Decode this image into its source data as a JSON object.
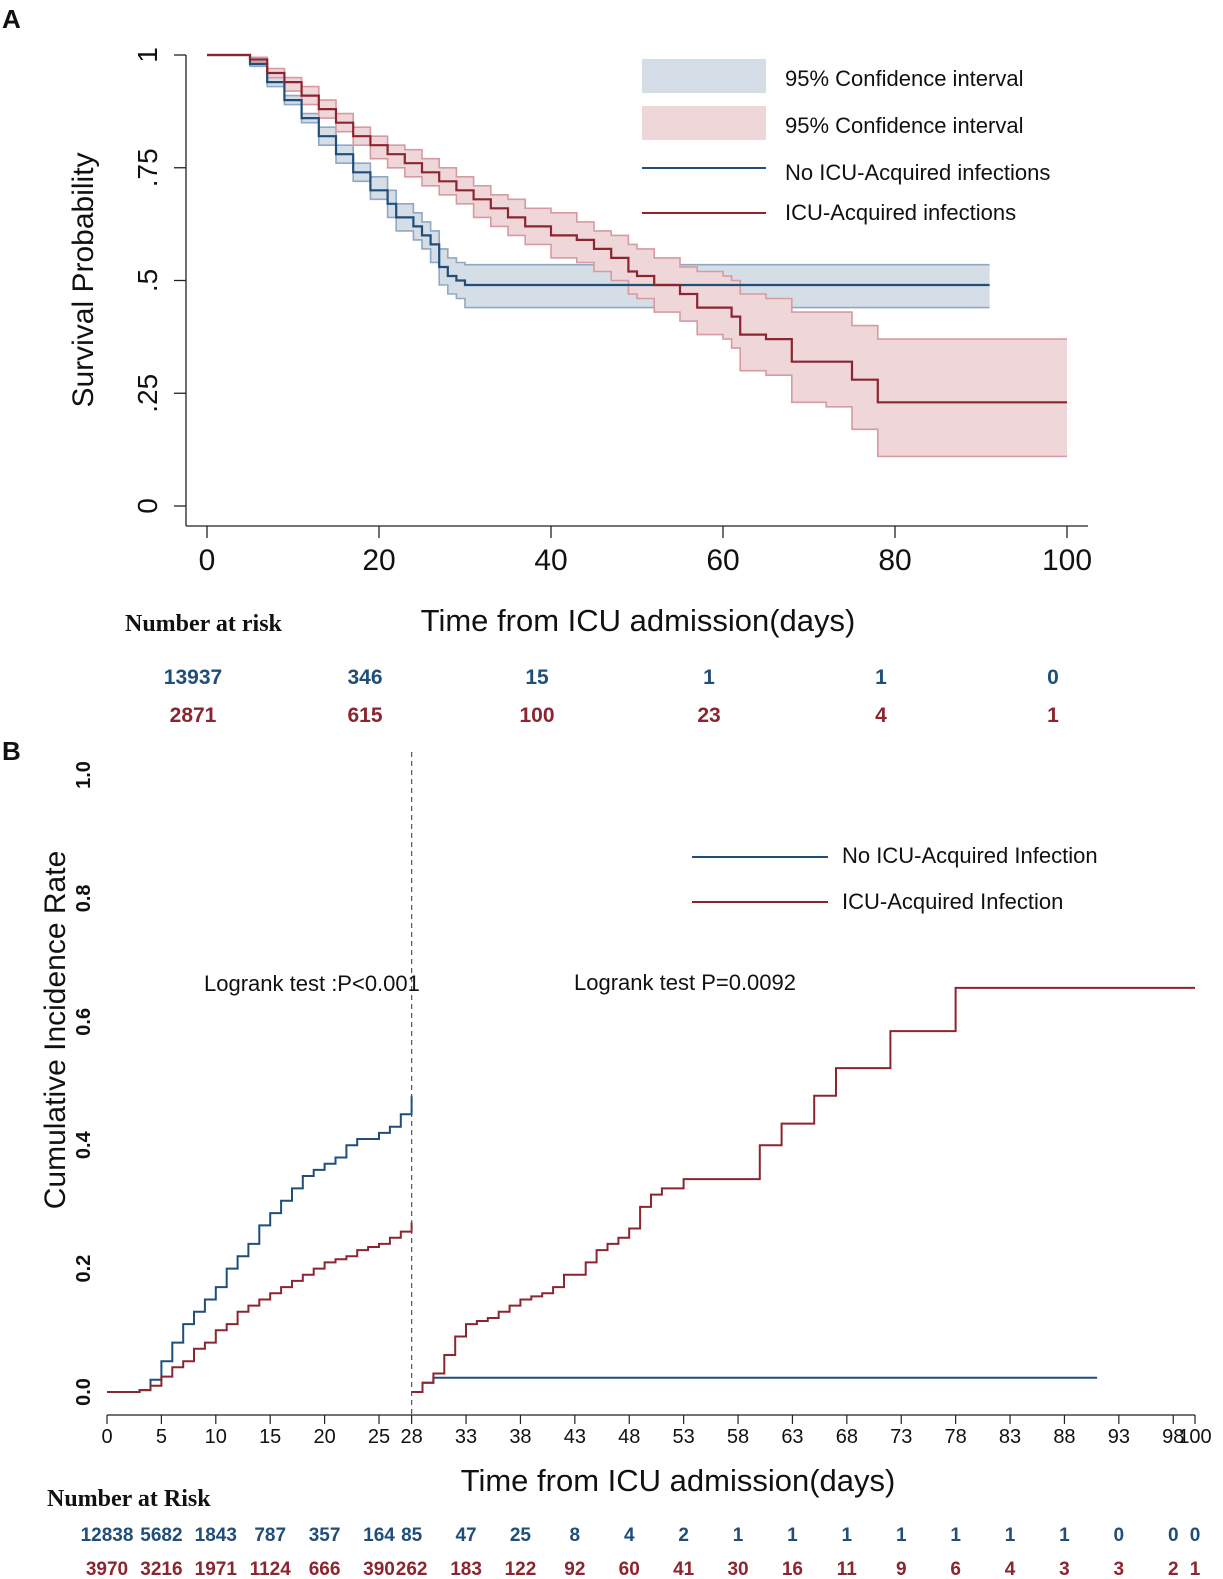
{
  "colors": {
    "blue": "#1f4e79",
    "red": "#8b2530",
    "blue_fill": "#d5dde7",
    "red_fill": "#efd7d9",
    "blue_edge": "#8fa8c4",
    "red_edge": "#d79aa1"
  },
  "chart_data": [
    {
      "panel": "A",
      "type": "line",
      "xlabel": "Time from ICU admission(days)",
      "ylabel": "Survival Probability",
      "xlim": [
        0,
        100
      ],
      "ylim": [
        0,
        1
      ],
      "xticks": [
        "0",
        "20",
        "40",
        "60",
        "80",
        "100"
      ],
      "xtick_values": [
        0,
        20,
        40,
        60,
        80,
        100
      ],
      "yticks": [
        "0",
        ".25",
        ".5",
        ".75",
        "1"
      ],
      "ytick_values": [
        0,
        0.25,
        0.5,
        0.75,
        1
      ],
      "legend": {
        "position": "top-right",
        "entries": [
          "95% Confidence interval",
          "95% Confidence interval",
          "No ICU-Acquired infections",
          "ICU-Acquired infections"
        ]
      },
      "series": [
        {
          "name": "No ICU-Acquired infections",
          "color": "blue",
          "x": [
            0,
            3,
            5,
            7,
            9,
            11,
            13,
            15,
            17,
            19,
            21,
            22,
            24,
            25,
            26,
            27,
            28,
            29,
            30,
            91
          ],
          "y": [
            1,
            1,
            0.98,
            0.94,
            0.9,
            0.86,
            0.82,
            0.78,
            0.74,
            0.7,
            0.67,
            0.64,
            0.62,
            0.6,
            0.58,
            0.53,
            0.51,
            0.5,
            0.49,
            0.49
          ],
          "lower": [
            1,
            1,
            0.975,
            0.93,
            0.89,
            0.85,
            0.8,
            0.76,
            0.72,
            0.68,
            0.64,
            0.61,
            0.59,
            0.57,
            0.54,
            0.49,
            0.47,
            0.46,
            0.44,
            0.44
          ],
          "upper": [
            1,
            1,
            0.985,
            0.95,
            0.91,
            0.87,
            0.84,
            0.8,
            0.76,
            0.73,
            0.7,
            0.67,
            0.65,
            0.63,
            0.61,
            0.57,
            0.55,
            0.54,
            0.535,
            0.535
          ]
        },
        {
          "name": "ICU-Acquired infections",
          "color": "red",
          "x": [
            0,
            3,
            5,
            7,
            9,
            11,
            13,
            15,
            17,
            19,
            21,
            23,
            25,
            27,
            29,
            31,
            33,
            35,
            37,
            40,
            43,
            45,
            47,
            49,
            50,
            52,
            55,
            57,
            60,
            61,
            62,
            65,
            68,
            72,
            75,
            78,
            100
          ],
          "y": [
            1,
            1,
            0.99,
            0.96,
            0.94,
            0.91,
            0.88,
            0.85,
            0.82,
            0.8,
            0.78,
            0.76,
            0.74,
            0.72,
            0.7,
            0.68,
            0.66,
            0.64,
            0.62,
            0.6,
            0.59,
            0.57,
            0.55,
            0.52,
            0.51,
            0.49,
            0.47,
            0.44,
            0.44,
            0.42,
            0.38,
            0.37,
            0.32,
            0.32,
            0.28,
            0.23,
            0.23
          ],
          "lower": [
            1,
            1,
            0.985,
            0.95,
            0.92,
            0.89,
            0.86,
            0.83,
            0.8,
            0.77,
            0.75,
            0.73,
            0.71,
            0.69,
            0.67,
            0.64,
            0.62,
            0.6,
            0.58,
            0.55,
            0.54,
            0.52,
            0.5,
            0.47,
            0.46,
            0.43,
            0.41,
            0.38,
            0.37,
            0.35,
            0.3,
            0.29,
            0.23,
            0.22,
            0.17,
            0.11,
            0.11
          ],
          "upper": [
            1,
            1,
            0.995,
            0.97,
            0.95,
            0.93,
            0.9,
            0.87,
            0.84,
            0.82,
            0.8,
            0.79,
            0.77,
            0.75,
            0.73,
            0.71,
            0.69,
            0.68,
            0.66,
            0.65,
            0.63,
            0.61,
            0.6,
            0.58,
            0.57,
            0.55,
            0.53,
            0.52,
            0.51,
            0.5,
            0.47,
            0.46,
            0.43,
            0.43,
            0.4,
            0.37,
            0.37
          ]
        }
      ],
      "risk_table": {
        "title": "Number at risk",
        "at": [
          0,
          20,
          40,
          60,
          80,
          100
        ],
        "rows": [
          {
            "color": "blue",
            "values": [
              "13937",
              "346",
              "15",
              "1",
              "1",
              "0"
            ]
          },
          {
            "color": "red",
            "values": [
              "2871",
              "615",
              "100",
              "23",
              "4",
              "1"
            ]
          }
        ]
      }
    },
    {
      "panel": "B",
      "type": "line",
      "xlabel": "Time from ICU admission(days)",
      "ylabel": "Cumulative Incidence Rate",
      "xlim": [
        0,
        100
      ],
      "ylim": [
        0,
        1.0
      ],
      "xticks": [
        "0",
        "5",
        "10",
        "15",
        "20",
        "25",
        "28",
        "33",
        "38",
        "43",
        "48",
        "53",
        "58",
        "63",
        "68",
        "73",
        "78",
        "83",
        "88",
        "93",
        "98",
        "100"
      ],
      "xtick_positions": [
        0,
        5,
        10,
        15,
        20,
        25,
        28,
        33,
        38,
        43,
        48,
        53,
        58,
        63,
        68,
        73,
        78,
        83,
        88,
        93,
        98,
        100
      ],
      "yticks": [
        "0.0",
        "0.2",
        "0.4",
        "0.6",
        "0.8",
        "1.0"
      ],
      "ytick_values": [
        0,
        0.2,
        0.4,
        0.6,
        0.8,
        1.0
      ],
      "annotations": [
        "Logrank test :P<0.001",
        "Logrank test P=0.0092"
      ],
      "landmark": 28,
      "legend": {
        "position": "top-right",
        "entries": [
          "No ICU-Acquired Infection",
          "ICU-Acquired Infection"
        ]
      },
      "series": [
        {
          "name": "No ICU-Acquired Infection (0-28)",
          "color": "blue",
          "x": [
            0,
            3,
            4,
            5,
            6,
            7,
            8,
            9,
            10,
            11,
            12,
            13,
            14,
            15,
            16,
            17,
            18,
            19,
            20,
            21,
            22,
            23,
            24,
            25,
            26,
            27,
            28
          ],
          "y": [
            0,
            0.003,
            0.02,
            0.05,
            0.08,
            0.11,
            0.13,
            0.15,
            0.17,
            0.2,
            0.22,
            0.24,
            0.27,
            0.29,
            0.31,
            0.33,
            0.35,
            0.36,
            0.37,
            0.38,
            0.4,
            0.41,
            0.41,
            0.42,
            0.43,
            0.45,
            0.48
          ]
        },
        {
          "name": "ICU-Acquired Infection (0-28)",
          "color": "red",
          "x": [
            0,
            3,
            4,
            5,
            6,
            7,
            8,
            9,
            10,
            11,
            12,
            13,
            14,
            15,
            16,
            17,
            18,
            19,
            20,
            21,
            22,
            23,
            24,
            25,
            26,
            27,
            28
          ],
          "y": [
            0,
            0.003,
            0.01,
            0.025,
            0.04,
            0.05,
            0.07,
            0.08,
            0.1,
            0.11,
            0.13,
            0.14,
            0.15,
            0.16,
            0.17,
            0.18,
            0.19,
            0.2,
            0.21,
            0.215,
            0.22,
            0.23,
            0.235,
            0.24,
            0.25,
            0.26,
            0.275
          ]
        },
        {
          "name": "No ICU-Acquired Infection (28-100)",
          "color": "blue",
          "x": [
            28,
            29,
            30,
            91
          ],
          "y": [
            0,
            0.015,
            0.023,
            0.023
          ]
        },
        {
          "name": "ICU-Acquired Infection (28-100)",
          "color": "red",
          "x": [
            28,
            29,
            30,
            31,
            32,
            33,
            34,
            35,
            36,
            37,
            38,
            39,
            40,
            41,
            42,
            43,
            44,
            45,
            46,
            47,
            48,
            49,
            50,
            51,
            53,
            59,
            60,
            62,
            65,
            67,
            72,
            78,
            100
          ],
          "y": [
            0,
            0.015,
            0.03,
            0.06,
            0.09,
            0.11,
            0.115,
            0.12,
            0.13,
            0.14,
            0.15,
            0.155,
            0.16,
            0.17,
            0.19,
            0.19,
            0.21,
            0.23,
            0.24,
            0.25,
            0.265,
            0.3,
            0.32,
            0.33,
            0.345,
            0.345,
            0.4,
            0.435,
            0.48,
            0.525,
            0.585,
            0.655,
            0.655
          ]
        }
      ],
      "risk_table": {
        "title": "Number at Risk",
        "at": [
          0,
          5,
          10,
          15,
          20,
          25,
          28,
          33,
          38,
          43,
          48,
          53,
          58,
          63,
          68,
          73,
          78,
          83,
          88,
          93,
          98,
          100
        ],
        "rows": [
          {
            "color": "blue",
            "values": [
              "12838",
              "5682",
              "1843",
              "787",
              "357",
              "164",
              "85",
              "47",
              "25",
              "8",
              "4",
              "2",
              "1",
              "1",
              "1",
              "1",
              "1",
              "1",
              "1",
              "0",
              "0",
              "0"
            ]
          },
          {
            "color": "red",
            "values": [
              "3970",
              "3216",
              "1971",
              "1124",
              "666",
              "390",
              "262",
              "183",
              "122",
              "92",
              "60",
              "41",
              "30",
              "16",
              "11",
              "9",
              "6",
              "4",
              "3",
              "3",
              "2",
              "1"
            ]
          }
        ]
      }
    }
  ],
  "panel_labels": [
    "A",
    "B"
  ]
}
